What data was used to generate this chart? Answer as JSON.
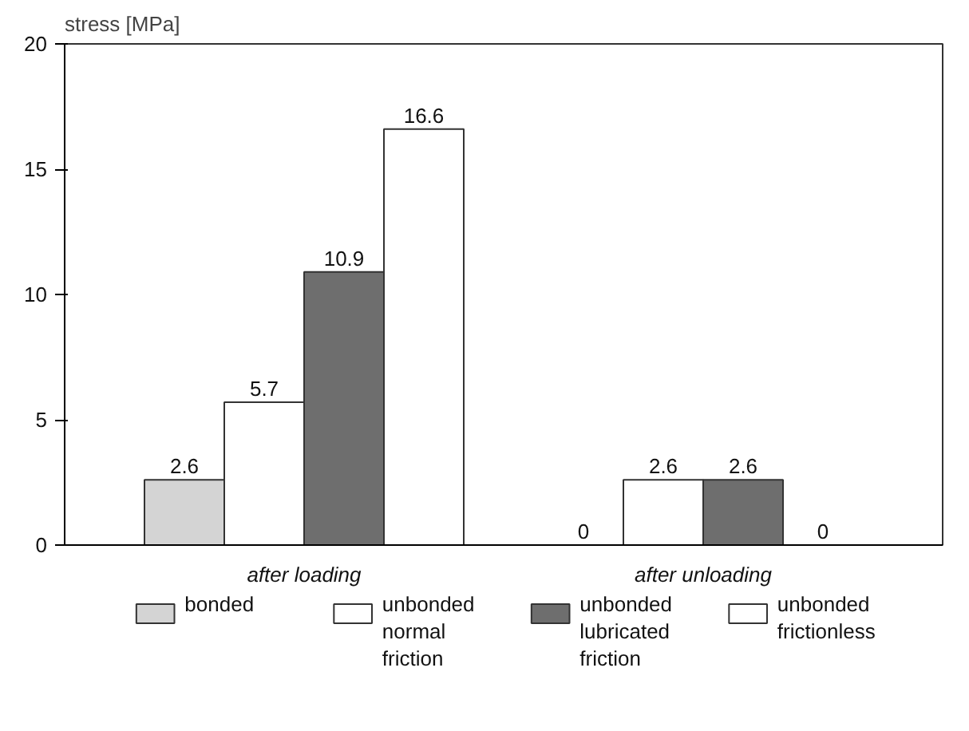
{
  "chart_data": {
    "type": "bar",
    "ylabel": "stress [MPa]",
    "categories": [
      "after loading",
      "after unloading"
    ],
    "series": [
      {
        "name": "bonded",
        "color": "#d4d4d4",
        "values": [
          2.6,
          0
        ]
      },
      {
        "name": "unbonded normal friction",
        "color": "#ffffff",
        "values": [
          5.7,
          2.6
        ]
      },
      {
        "name": "unbonded lubricated friction",
        "color": "#6e6e6e",
        "values": [
          10.9,
          2.6
        ]
      },
      {
        "name": "unbonded frictionless",
        "color": "#ffffff",
        "values": [
          16.6,
          0
        ]
      }
    ],
    "ylim": [
      0,
      20
    ],
    "yticks": [
      0,
      5,
      10,
      15,
      20
    ],
    "grid": false,
    "legend": "bottom",
    "data_labels": true
  }
}
